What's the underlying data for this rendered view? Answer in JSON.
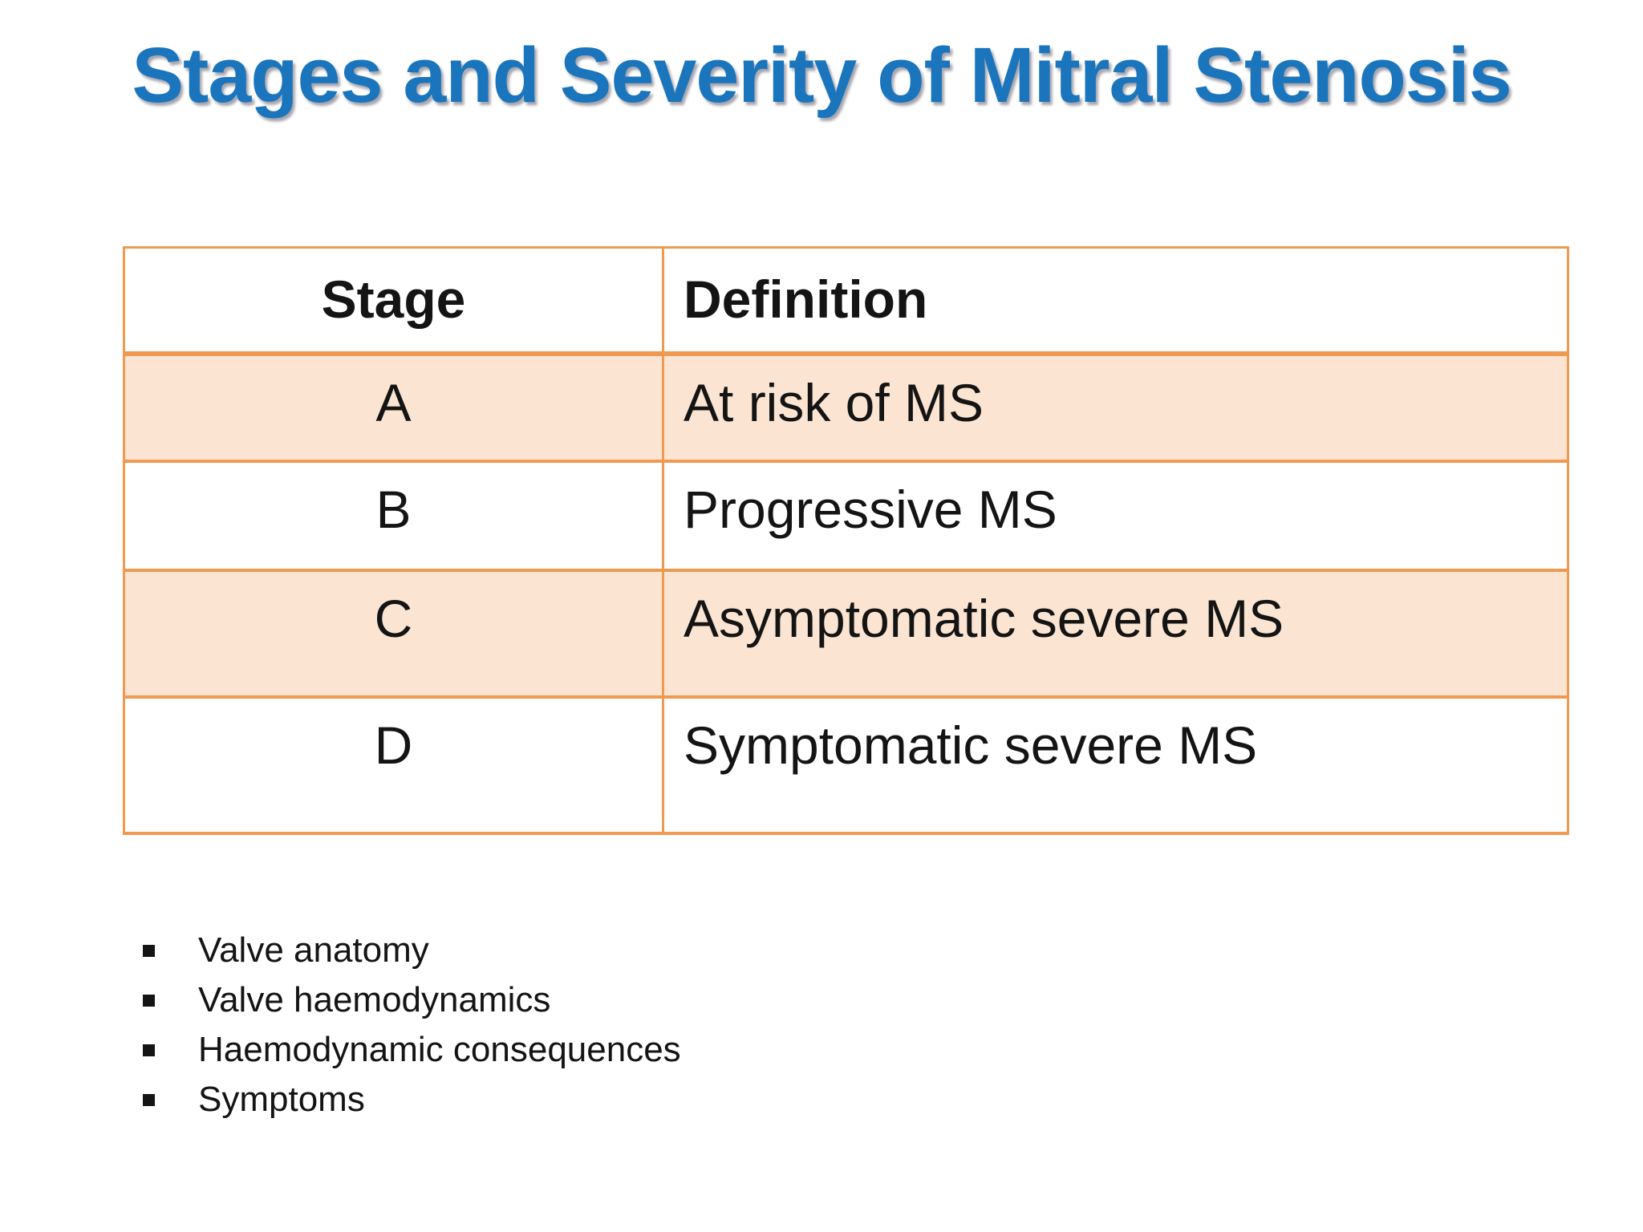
{
  "slide": {
    "title": "Stages and Severity of Mitral Stenosis",
    "colors": {
      "title_blue": "#1B75BD",
      "table_border_orange": "#EF9A50",
      "shaded_row_peach": "#FBE5D2",
      "text_black": "#141414"
    },
    "table": {
      "headers": [
        "Stage",
        "Definition"
      ],
      "rows": [
        {
          "stage": "A",
          "definition": "At risk of MS",
          "shaded": true
        },
        {
          "stage": "B",
          "definition": "Progressive MS",
          "shaded": false
        },
        {
          "stage": "C",
          "definition": "Asymptomatic severe MS",
          "shaded": true
        },
        {
          "stage": "D",
          "definition": "Symptomatic severe MS",
          "shaded": false
        }
      ]
    },
    "bullets": [
      "Valve anatomy",
      "Valve haemodynamics",
      "Haemodynamic consequences",
      "Symptoms"
    ]
  }
}
